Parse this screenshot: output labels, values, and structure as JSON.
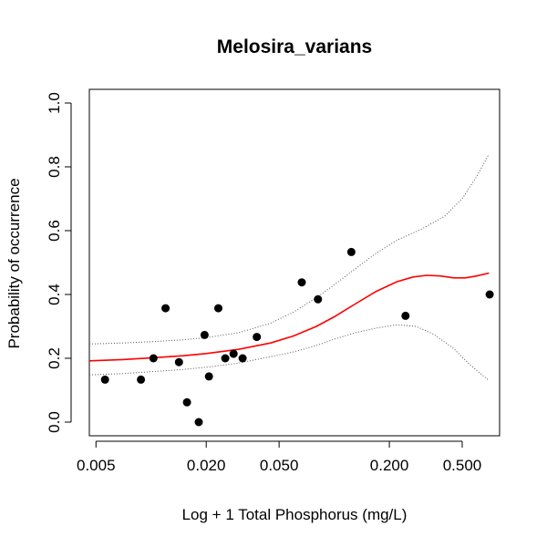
{
  "chart_data": {
    "type": "scatter",
    "title": "Melosira_varians",
    "xlabel": "Log + 1 Total Phosphorus (mg/L)",
    "ylabel": "Probability of occurrence",
    "x_scale": "log",
    "xlim": [
      0.0046,
      0.8
    ],
    "ylim": [
      0.0,
      1.0
    ],
    "x_ticks": [
      0.005,
      0.02,
      0.05,
      0.2,
      0.5
    ],
    "x_tick_labels": [
      "0.005",
      "0.020",
      "0.050",
      "0.200",
      "0.500"
    ],
    "y_ticks": [
      0.0,
      0.2,
      0.4,
      0.6,
      0.8,
      1.0
    ],
    "y_tick_labels": [
      "0.0",
      "0.2",
      "0.4",
      "0.6",
      "0.8",
      "1.0"
    ],
    "points": [
      {
        "x": 0.0056,
        "y": 0.133
      },
      {
        "x": 0.0088,
        "y": 0.133
      },
      {
        "x": 0.0103,
        "y": 0.2
      },
      {
        "x": 0.012,
        "y": 0.357
      },
      {
        "x": 0.0142,
        "y": 0.188
      },
      {
        "x": 0.0157,
        "y": 0.062
      },
      {
        "x": 0.0182,
        "y": 0.0
      },
      {
        "x": 0.0196,
        "y": 0.273
      },
      {
        "x": 0.0207,
        "y": 0.143
      },
      {
        "x": 0.0233,
        "y": 0.357
      },
      {
        "x": 0.0254,
        "y": 0.2
      },
      {
        "x": 0.0282,
        "y": 0.214
      },
      {
        "x": 0.0316,
        "y": 0.2
      },
      {
        "x": 0.0378,
        "y": 0.267
      },
      {
        "x": 0.0665,
        "y": 0.438
      },
      {
        "x": 0.0815,
        "y": 0.385
      },
      {
        "x": 0.124,
        "y": 0.533
      },
      {
        "x": 0.245,
        "y": 0.333
      },
      {
        "x": 0.706,
        "y": 0.4
      }
    ],
    "series": [
      {
        "style": "solid",
        "color": "#ff0000",
        "x": [
          0.0046,
          0.007,
          0.01,
          0.015,
          0.02,
          0.03,
          0.045,
          0.06,
          0.08,
          0.1,
          0.13,
          0.17,
          0.22,
          0.27,
          0.32,
          0.38,
          0.45,
          0.52,
          0.6,
          0.7
        ],
        "y": [
          0.192,
          0.196,
          0.201,
          0.208,
          0.215,
          0.228,
          0.248,
          0.27,
          0.3,
          0.33,
          0.37,
          0.41,
          0.44,
          0.455,
          0.46,
          0.458,
          0.452,
          0.452,
          0.458,
          0.467
        ]
      },
      {
        "style": "dotted",
        "color": "#555555",
        "x": [
          0.0046,
          0.007,
          0.01,
          0.015,
          0.02,
          0.03,
          0.045,
          0.06,
          0.08,
          0.1,
          0.13,
          0.17,
          0.22,
          0.3,
          0.4,
          0.5,
          0.6,
          0.7
        ],
        "y": [
          0.245,
          0.248,
          0.252,
          0.258,
          0.265,
          0.28,
          0.31,
          0.345,
          0.39,
          0.43,
          0.48,
          0.53,
          0.57,
          0.605,
          0.645,
          0.7,
          0.77,
          0.84
        ]
      },
      {
        "style": "dotted",
        "color": "#555555",
        "x": [
          0.0046,
          0.007,
          0.01,
          0.015,
          0.02,
          0.03,
          0.045,
          0.06,
          0.08,
          0.1,
          0.13,
          0.17,
          0.22,
          0.28,
          0.35,
          0.45,
          0.55,
          0.7
        ],
        "y": [
          0.148,
          0.152,
          0.158,
          0.165,
          0.172,
          0.185,
          0.205,
          0.22,
          0.24,
          0.26,
          0.28,
          0.295,
          0.305,
          0.3,
          0.275,
          0.23,
          0.18,
          0.13
        ]
      }
    ],
    "point_color": "#000000",
    "grid": false
  }
}
